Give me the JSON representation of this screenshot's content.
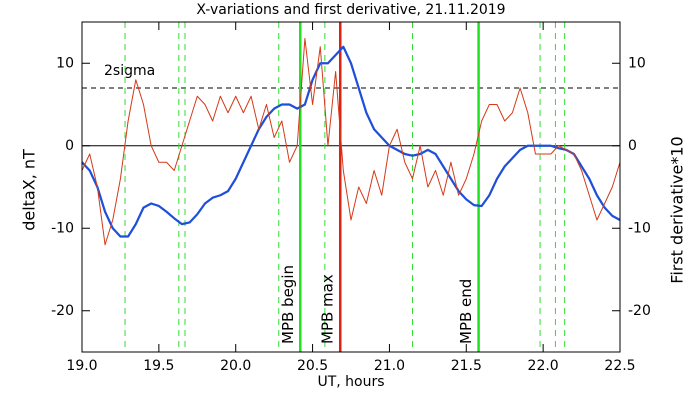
{
  "chart_data": {
    "type": "line",
    "title": "X-variations and first derivative, 21.11.2019",
    "xlabel": "UT, hours",
    "ylabel": "deltaX, nT",
    "y2label": "First derivative*10",
    "xlim": [
      19,
      22.5
    ],
    "xticks": [
      {
        "value": 19,
        "label": "19.0"
      },
      19.5,
      {
        "value": 20,
        "label": "20.0"
      },
      20.5,
      {
        "value": 21,
        "label": "21.0"
      },
      21.5,
      {
        "value": 22,
        "label": "22.0"
      },
      22.5
    ],
    "ylim": [
      -25,
      15
    ],
    "yticks": [
      -20,
      -10,
      0,
      10
    ],
    "y2lim": [
      -25,
      15
    ],
    "y2ticks": [
      -20,
      -10,
      0,
      10
    ],
    "x": [
      19.0,
      19.05,
      19.1,
      19.15,
      19.2,
      19.25,
      19.3,
      19.35,
      19.4,
      19.45,
      19.5,
      19.55,
      19.6,
      19.65,
      19.7,
      19.75,
      19.8,
      19.85,
      19.9,
      19.95,
      20.0,
      20.05,
      20.1,
      20.15,
      20.2,
      20.25,
      20.3,
      20.35,
      20.4,
      20.45,
      20.5,
      20.55,
      20.6,
      20.65,
      20.7,
      20.75,
      20.8,
      20.85,
      20.9,
      20.95,
      21.0,
      21.05,
      21.1,
      21.15,
      21.2,
      21.25,
      21.3,
      21.35,
      21.4,
      21.45,
      21.5,
      21.55,
      21.6,
      21.65,
      21.7,
      21.75,
      21.8,
      21.85,
      21.9,
      21.95,
      22.0,
      22.05,
      22.1,
      22.15,
      22.2,
      22.25,
      22.3,
      22.35,
      22.4,
      22.45,
      22.5
    ],
    "series": [
      {
        "color": "#1f4fd8",
        "values": [
          -2,
          -3,
          -5,
          -8,
          -10,
          -11,
          -11,
          -9.5,
          -7.5,
          -7,
          -7.3,
          -8,
          -8.8,
          -9.5,
          -9.3,
          -8.3,
          -7,
          -6.3,
          -6,
          -5.5,
          -4,
          -2,
          0,
          2,
          3.5,
          4.5,
          5,
          5,
          4.5,
          5,
          8,
          10,
          10,
          11,
          12,
          10,
          7,
          4,
          2,
          1,
          0,
          -0.5,
          -1,
          -1.2,
          -1,
          -0.5,
          -1,
          -2.5,
          -4,
          -5.5,
          -6.5,
          -7.2,
          -7.3,
          -6,
          -4,
          -2.5,
          -1.5,
          -0.5,
          0,
          0,
          0,
          0,
          -0.3,
          -0.5,
          -1,
          -2.5,
          -4,
          -6,
          -7.5,
          -8.5,
          -9
        ]
      },
      {
        "color": "#d43a1a",
        "axis": "y2",
        "values": [
          -3,
          -1,
          -5,
          -12,
          -9,
          -4,
          3,
          8,
          5,
          0,
          -2,
          -2,
          -3,
          0,
          3,
          6,
          5,
          3,
          6,
          4,
          6,
          4,
          6,
          2,
          5,
          1,
          3,
          -2,
          0,
          13,
          5,
          12,
          0,
          9,
          -3,
          -9,
          -5,
          -7,
          -3,
          -6,
          0,
          2,
          -2,
          -4,
          0,
          -5,
          -3,
          -6,
          -2,
          -6,
          -4,
          -1,
          3,
          5,
          5,
          3,
          4,
          7,
          4,
          -1,
          -1,
          -1,
          0,
          -0.5,
          -1,
          -3,
          -6,
          -9,
          -7,
          -5,
          -2
        ]
      }
    ],
    "hlines": [
      {
        "y": 7,
        "label": "2sigma",
        "color": "#000000",
        "style": "dashed"
      },
      {
        "y": 0,
        "color": "#000000",
        "style": "solid"
      }
    ],
    "vlines": [
      {
        "x": 19.28,
        "color": "#33dd33",
        "style": "dashed"
      },
      {
        "x": 19.63,
        "color": "#33dd33",
        "style": "dashed"
      },
      {
        "x": 19.67,
        "color": "#33dd33",
        "style": "dashed"
      },
      {
        "x": 20.28,
        "color": "#33dd33",
        "style": "dashed"
      },
      {
        "x": 20.42,
        "color": "#22e022",
        "style": "solid",
        "label": "MPB begin"
      },
      {
        "x": 20.58,
        "color": "#33dd33",
        "style": "dashed"
      },
      {
        "x": 20.68,
        "color": "#dd2211",
        "style": "solid",
        "label": "MPB max"
      },
      {
        "x": 21.15,
        "color": "#33dd33",
        "style": "dashed"
      },
      {
        "x": 21.58,
        "color": "#22e022",
        "style": "solid",
        "label": "MPB end"
      },
      {
        "x": 21.98,
        "color": "#33dd33",
        "style": "dashed"
      },
      {
        "x": 22.08,
        "color": "#33dd33",
        "style": "dashed"
      },
      {
        "x": 22.14,
        "color": "#33dd33",
        "style": "dashed"
      }
    ]
  }
}
